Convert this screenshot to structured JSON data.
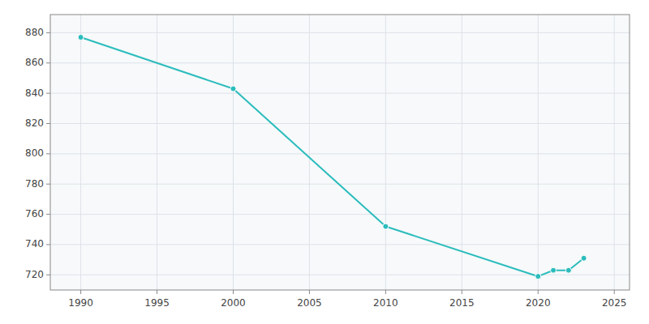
{
  "chart_data": {
    "type": "line",
    "x": [
      1990,
      2000,
      2010,
      2020,
      2021,
      2022,
      2023
    ],
    "values": [
      877,
      843,
      752,
      719,
      723,
      723,
      731
    ],
    "color": "#2BBCBC",
    "marker": "circle",
    "xlim": [
      1988,
      2026
    ],
    "ylim": [
      710,
      892
    ],
    "xticks": [
      1990,
      1995,
      2000,
      2005,
      2010,
      2015,
      2020,
      2025
    ],
    "yticks": [
      720,
      740,
      760,
      780,
      800,
      820,
      840,
      860,
      880
    ],
    "grid": true
  }
}
